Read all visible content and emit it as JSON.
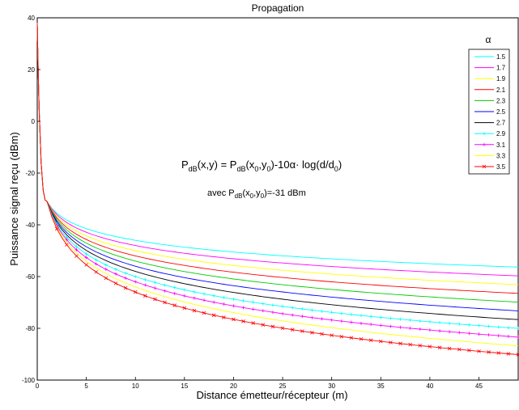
{
  "chart_data": {
    "type": "line",
    "title": "Propagation",
    "xlabel": "Distance émetteur/récepteur (m)",
    "ylabel": "Puissance signal reçu (dBm)",
    "xlim": [
      0,
      49
    ],
    "ylim": [
      -100,
      40
    ],
    "xticks": [
      0,
      5,
      10,
      15,
      20,
      25,
      30,
      35,
      40,
      45
    ],
    "yticks": [
      40,
      20,
      0,
      -20,
      -40,
      -60,
      -80,
      -100
    ],
    "grid": false,
    "legend_title": "α",
    "legend_position": "top-right",
    "model": {
      "reference_power_dbm": -31,
      "reference_distance_m": 1,
      "near_field_start_dbm": 38
    },
    "annotation": {
      "formula_main": "P",
      "formula_sub": "dB",
      "formula_rest": "(x,y) = P",
      "formula_sub2": "dB",
      "formula_rest2": "(x",
      "formula_sub3": "0",
      "formula_rest3": ",y",
      "formula_sub4": "0",
      "formula_rest4": ")-10α· log(d/d",
      "formula_sub5": "0",
      "formula_rest5": ")",
      "ref_prefix": "avec P",
      "ref_sub": "dB",
      "ref_mid": "(x",
      "ref_sub2": "0",
      "ref_mid2": ",y",
      "ref_sub3": "0",
      "ref_suffix": ")=-31 dBm"
    },
    "series": [
      {
        "name": "1.5",
        "alpha": 1.5,
        "color": "#00ffff",
        "marker": "none"
      },
      {
        "name": "1.7",
        "alpha": 1.7,
        "color": "#ff00ff",
        "marker": "none"
      },
      {
        "name": "1.9",
        "alpha": 1.9,
        "color": "#ffff00",
        "marker": "none"
      },
      {
        "name": "2.1",
        "alpha": 2.1,
        "color": "#ff0000",
        "marker": "none"
      },
      {
        "name": "2.3",
        "alpha": 2.3,
        "color": "#00cc00",
        "marker": "none"
      },
      {
        "name": "2.5",
        "alpha": 2.5,
        "color": "#0000ff",
        "marker": "none"
      },
      {
        "name": "2.7",
        "alpha": 2.7,
        "color": "#000000",
        "marker": "none"
      },
      {
        "name": "2.9",
        "alpha": 2.9,
        "color": "#00ffff",
        "marker": "plus"
      },
      {
        "name": "3.1",
        "alpha": 3.1,
        "color": "#ff00ff",
        "marker": "plus"
      },
      {
        "name": "3.3",
        "alpha": 3.3,
        "color": "#ffff00",
        "marker": "none"
      },
      {
        "name": "3.5",
        "alpha": 3.5,
        "color": "#ff0000",
        "marker": "cross"
      }
    ]
  }
}
